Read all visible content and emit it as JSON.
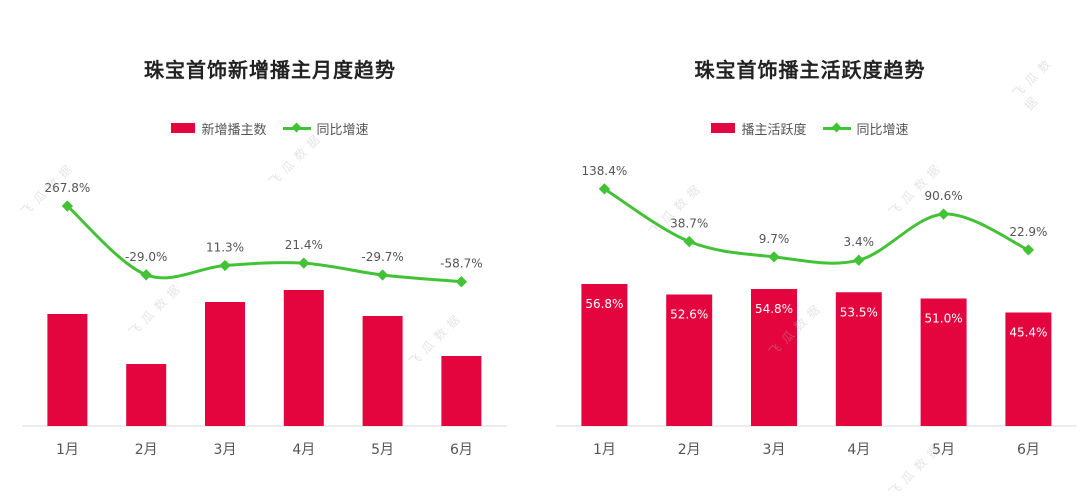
{
  "chart_data": [
    {
      "type": "bar",
      "title": "珠宝首饰新增播主月度趋势",
      "categories": [
        "1月",
        "2月",
        "3月",
        "4月",
        "5月",
        "6月"
      ],
      "series": [
        {
          "name": "新增播主数",
          "type": "bar",
          "values": [
            112,
            62,
            124,
            136,
            110,
            70
          ],
          "labels": [
            "",
            "",
            "",
            "",
            "",
            ""
          ]
        },
        {
          "name": "同比增速",
          "type": "line",
          "values": [
            267.8,
            -29.0,
            11.3,
            21.4,
            -29.7,
            -58.7
          ],
          "labels": [
            "267.8%",
            "-29.0%",
            "11.3%",
            "21.4%",
            "-29.7%",
            "-58.7%"
          ]
        }
      ],
      "colors": {
        "bar": "#e4053f",
        "line": "#43c237"
      },
      "legend": "top-center",
      "grid": false
    },
    {
      "type": "bar",
      "title": "珠宝首饰播主活跃度趋势",
      "categories": [
        "1月",
        "2月",
        "3月",
        "4月",
        "5月",
        "6月"
      ],
      "series": [
        {
          "name": "播主活跃度",
          "type": "bar",
          "values": [
            56.8,
            52.6,
            54.8,
            53.5,
            51.0,
            45.4
          ],
          "labels": [
            "56.8%",
            "52.6%",
            "54.8%",
            "53.5%",
            "51.0%",
            "45.4%"
          ]
        },
        {
          "name": "同比增速",
          "type": "line",
          "values": [
            138.4,
            38.7,
            9.7,
            3.4,
            90.6,
            22.9
          ],
          "labels": [
            "138.4%",
            "38.7%",
            "9.7%",
            "3.4%",
            "90.6%",
            "22.9%"
          ]
        }
      ],
      "colors": {
        "bar": "#e4053f",
        "line": "#43c237"
      },
      "legend": "top-center",
      "grid": false
    }
  ],
  "watermark_text": "飞瓜数据"
}
